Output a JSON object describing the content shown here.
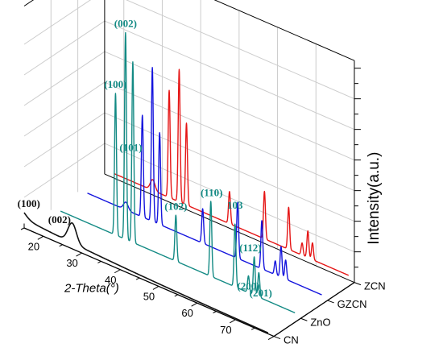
{
  "colors": {
    "CN": "#111111",
    "ZnO": "#138a84",
    "GZCN": "#1414dd",
    "ZCN": "#e51515",
    "label": "#138a84",
    "grid": "#cccccc",
    "axis": "#000000"
  },
  "chart_data": {
    "type": "line",
    "subtype": "3d-waterfall",
    "xlabel": "2-Theta(°)",
    "ylabel": "Intensity(a.u.)",
    "zlabel": "",
    "xlim": [
      15,
      80
    ],
    "xticks": [
      20,
      30,
      40,
      50,
      60,
      70
    ],
    "series_ticks": [
      "CN",
      "ZnO",
      "GZCN",
      "ZCN"
    ],
    "grid": true,
    "series": [
      {
        "name": "CN",
        "kind": "broad",
        "background": 12,
        "peaks": [
          {
            "x": 13.1,
            "h": 14,
            "w": 1.8
          },
          {
            "x": 27.5,
            "h": 26,
            "w": 1.1
          }
        ]
      },
      {
        "name": "ZnO",
        "kind": "sharp",
        "background": 4,
        "peaks": [
          {
            "x": 31.8,
            "h": 185,
            "w": 0.25
          },
          {
            "x": 34.4,
            "h": 270,
            "w": 0.25
          },
          {
            "x": 36.3,
            "h": 236,
            "w": 0.25
          },
          {
            "x": 47.5,
            "h": 60,
            "w": 0.25
          },
          {
            "x": 56.6,
            "h": 98,
            "w": 0.25
          },
          {
            "x": 62.9,
            "h": 82,
            "w": 0.25
          },
          {
            "x": 66.4,
            "h": 22,
            "w": 0.25
          },
          {
            "x": 67.9,
            "h": 50,
            "w": 0.25
          },
          {
            "x": 69.1,
            "h": 32,
            "w": 0.25
          }
        ]
      },
      {
        "name": "GZCN",
        "kind": "sharp",
        "background": 4,
        "peaks": [
          {
            "x": 27.5,
            "h": 10,
            "w": 0.6
          },
          {
            "x": 31.8,
            "h": 133,
            "w": 0.25
          },
          {
            "x": 34.4,
            "h": 201,
            "w": 0.25
          },
          {
            "x": 36.3,
            "h": 120,
            "w": 0.25
          },
          {
            "x": 47.5,
            "h": 45,
            "w": 0.25
          },
          {
            "x": 56.6,
            "h": 73,
            "w": 0.25
          },
          {
            "x": 62.9,
            "h": 63,
            "w": 0.25
          },
          {
            "x": 66.4,
            "h": 18,
            "w": 0.25
          },
          {
            "x": 67.9,
            "h": 40,
            "w": 0.25
          },
          {
            "x": 69.1,
            "h": 25,
            "w": 0.25
          }
        ]
      },
      {
        "name": "ZCN",
        "kind": "sharp",
        "background": 6,
        "peaks": [
          {
            "x": 27.5,
            "h": 14,
            "w": 0.6
          },
          {
            "x": 31.8,
            "h": 140,
            "w": 0.25
          },
          {
            "x": 34.4,
            "h": 173,
            "w": 0.25
          },
          {
            "x": 36.3,
            "h": 107,
            "w": 0.25
          },
          {
            "x": 47.5,
            "h": 42,
            "w": 0.25
          },
          {
            "x": 56.6,
            "h": 62,
            "w": 0.25
          },
          {
            "x": 62.9,
            "h": 55,
            "w": 0.25
          },
          {
            "x": 66.4,
            "h": 16,
            "w": 0.25
          },
          {
            "x": 67.9,
            "h": 35,
            "w": 0.25
          },
          {
            "x": 69.1,
            "h": 22,
            "w": 0.25
          }
        ]
      }
    ],
    "annotations": [
      {
        "text": "(100)",
        "series": "CN",
        "x": 16.2,
        "h": 26
      },
      {
        "text": "(002)",
        "series": "CN",
        "x": 24.2,
        "h": 22
      },
      {
        "text": "(100)",
        "series": "ZnO",
        "x": 31.8,
        "h": 192
      },
      {
        "text": "(002)",
        "series": "ZnO",
        "x": 34.4,
        "h": 277
      },
      {
        "text": "(101)",
        "series": "ZnO",
        "x": 35.8,
        "h": 118
      },
      {
        "text": "(102)",
        "series": "ZnO",
        "x": 47.5,
        "h": 67
      },
      {
        "text": "(110)",
        "series": "ZnO",
        "x": 56.8,
        "h": 105
      },
      {
        "text": "103",
        "series": "ZnO",
        "x": 62.9,
        "h": 102
      },
      {
        "text": "(112)",
        "series": "ZnO",
        "x": 66.9,
        "h": 55
      },
      {
        "text": "(200)",
        "series": "ZnO",
        "x": 66.4,
        "h": 4
      },
      {
        "text": "(201)",
        "series": "ZnO",
        "x": 69.6,
        "h": 2
      }
    ]
  }
}
